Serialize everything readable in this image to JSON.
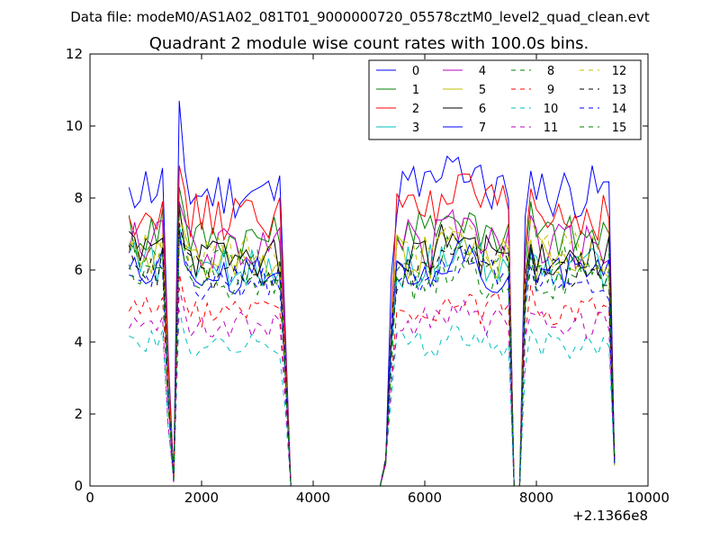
{
  "chart_data": {
    "type": "line",
    "suptitle": "Data file: modeM0/AS1A02_081T01_9000000720_05578cztM0_level2_quad_clean.evt",
    "title": "Quadrant 2 module wise count rates with 100.0s bins.",
    "xlabel": "",
    "ylabel": "",
    "x_offset_label": "+2.1366e8",
    "xlim": [
      0,
      10000
    ],
    "ylim": [
      0,
      12
    ],
    "xticks": [
      0,
      2000,
      4000,
      6000,
      8000,
      10000
    ],
    "yticks": [
      0,
      2,
      4,
      6,
      8,
      10,
      12
    ],
    "xtick_labels": [
      "0",
      "2000",
      "4000",
      "6000",
      "8000",
      "10000"
    ],
    "ytick_labels": [
      "0",
      "2",
      "4",
      "6",
      "8",
      "10",
      "12"
    ],
    "legend": {
      "position": "top-right",
      "columns": 4
    },
    "x_orbit1": [
      700,
      800,
      900,
      1000,
      1100,
      1200,
      1300,
      1400
    ],
    "x_orbit2": [
      1500,
      1600,
      1700,
      1800,
      1900,
      2000,
      2100,
      2200,
      2300,
      2400,
      2500,
      2600,
      2700,
      2800,
      2900,
      3000,
      3100,
      3200,
      3300,
      3400,
      3500
    ],
    "x_gap": [
      3600,
      3700,
      3800,
      3900,
      4000,
      4100,
      4200,
      4300,
      4400,
      4500,
      4600,
      4700,
      4800,
      4900,
      5000,
      5100,
      5200,
      5300
    ],
    "x_orbit3": [
      5400,
      5500,
      5600,
      5700,
      5800,
      5900,
      6000,
      6100,
      6200,
      6300,
      6400,
      6500,
      6600,
      6700,
      6800,
      6900,
      7000,
      7100,
      7200,
      7300,
      7400,
      7500
    ],
    "x_orbit4": [
      7600,
      7700,
      7800,
      7900,
      8000,
      8100,
      8200,
      8300,
      8400,
      8500,
      8600,
      8700,
      8800,
      8900,
      9000,
      9100,
      9200,
      9300,
      9400
    ],
    "series": [
      {
        "name": "0",
        "color": "#0000ff",
        "dash": "solid",
        "level": 8.6,
        "peak": 10.7
      },
      {
        "name": "1",
        "color": "#008000",
        "dash": "solid",
        "level": 7.3,
        "peak": 8.3
      },
      {
        "name": "2",
        "color": "#ff0000",
        "dash": "solid",
        "level": 7.9,
        "peak": 8.9
      },
      {
        "name": "3",
        "color": "#00bfbf",
        "dash": "solid",
        "level": 6.4,
        "peak": 7.2
      },
      {
        "name": "4",
        "color": "#bf00bf",
        "dash": "solid",
        "level": 7.0,
        "peak": 7.9
      },
      {
        "name": "5",
        "color": "#bfbf00",
        "dash": "solid",
        "level": 6.6,
        "peak": 7.6
      },
      {
        "name": "6",
        "color": "#000000",
        "dash": "solid",
        "level": 6.7,
        "peak": 7.8
      },
      {
        "name": "7",
        "color": "#0000ff",
        "dash": "solid",
        "level": 6.2,
        "peak": 7.1
      },
      {
        "name": "8",
        "color": "#008000",
        "dash": "dashed",
        "level": 6.5,
        "peak": 7.9
      },
      {
        "name": "9",
        "color": "#ff0000",
        "dash": "dashed",
        "level": 5.1,
        "peak": 5.9
      },
      {
        "name": "10",
        "color": "#00bfbf",
        "dash": "dashed",
        "level": 4.1,
        "peak": 4.9
      },
      {
        "name": "11",
        "color": "#bf00bf",
        "dash": "dashed",
        "level": 4.7,
        "peak": 5.5
      },
      {
        "name": "12",
        "color": "#bfbf00",
        "dash": "dashed",
        "level": 6.8,
        "peak": 7.4
      },
      {
        "name": "13",
        "color": "#000000",
        "dash": "dashed",
        "level": 6.3,
        "peak": 7.3
      },
      {
        "name": "14",
        "color": "#0000ff",
        "dash": "dashed",
        "level": 6.0,
        "peak": 6.9
      },
      {
        "name": "15",
        "color": "#008000",
        "dash": "dashed",
        "level": 5.9,
        "peak": 7.0
      }
    ]
  }
}
